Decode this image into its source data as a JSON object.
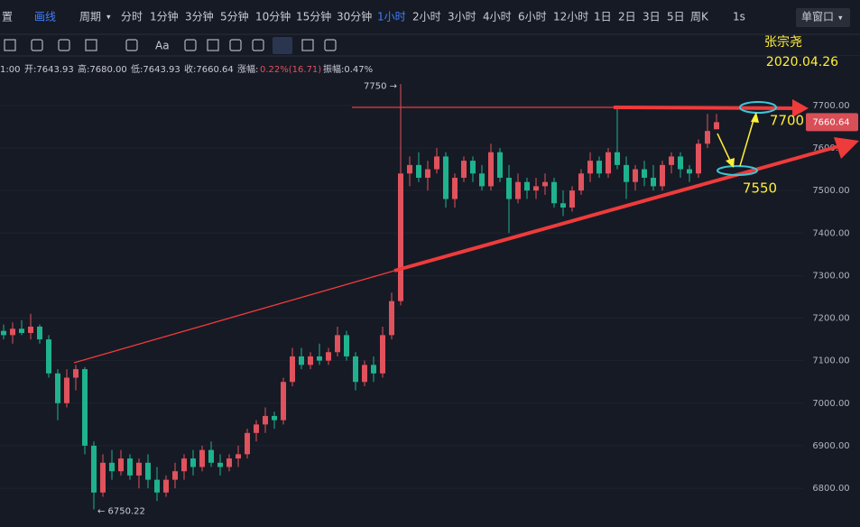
{
  "ui": {
    "toolbar": [
      "置",
      "画线",
      "周期",
      "分时",
      "1分钟",
      "3分钟",
      "5分钟",
      "10分钟",
      "15分钟",
      "30分钟",
      "1小时",
      "2小时",
      "3小时",
      "4小时",
      "6小时",
      "12小时",
      "1日",
      "2日",
      "3日",
      "5日",
      "周K",
      "1s",
      "单窗口"
    ],
    "active": "1小时",
    "toolbar2": [
      "Aa"
    ],
    "info": [
      "1:00",
      "开:7643.93",
      "高:7680.00",
      "低:7643.93",
      "收:7660.64",
      "涨幅:",
      "0.22%(16.71)",
      "振幅:0.47%"
    ]
  },
  "chart_data": {
    "type": "candlestick",
    "up_color": "#e0525c",
    "down_color": "#1fb28f",
    "grid": true,
    "ylim": [
      6728,
      7810
    ],
    "yticks": [
      {
        "value": 6800,
        "label": "6800.00"
      },
      {
        "value": 6900,
        "label": "6900.00"
      },
      {
        "value": 7000,
        "label": "7000.00"
      },
      {
        "value": 7100,
        "label": "7100.00"
      },
      {
        "value": 7200,
        "label": "7200.00"
      },
      {
        "value": 7300,
        "label": "7300.00"
      },
      {
        "value": 7400,
        "label": "7400.00"
      },
      {
        "value": 7500,
        "label": "7500.00"
      },
      {
        "value": 7600,
        "label": "7600.00"
      },
      {
        "value": 7700,
        "label": "7700.00"
      }
    ],
    "open": [
      7170,
      7160,
      7175,
      7165,
      7180,
      7150,
      7070,
      7000,
      7060,
      7080,
      6900,
      6790,
      6860,
      6840,
      6870,
      6830,
      6860,
      6820,
      6790,
      6820,
      6840,
      6870,
      6850,
      6890,
      6860,
      6850,
      6870,
      6880,
      6930,
      6950,
      6970,
      6960,
      7050,
      7110,
      7090,
      7110,
      7100,
      7120,
      7160,
      7110,
      7050,
      7090,
      7070,
      7160,
      7240,
      7540,
      7560,
      7530,
      7550,
      7580,
      7480,
      7530,
      7570,
      7540,
      7510,
      7590,
      7530,
      7480,
      7520,
      7500,
      7510,
      7520,
      7470,
      7460,
      7500,
      7540,
      7570,
      7540,
      7590,
      7560,
      7520,
      7550,
      7530,
      7510,
      7560,
      7580,
      7550,
      7540,
      7610,
      7643.93
    ],
    "high": [
      7185,
      7190,
      7195,
      7210,
      7185,
      7160,
      7080,
      7080,
      7090,
      7085,
      6910,
      6880,
      6890,
      6890,
      6880,
      6870,
      6880,
      6850,
      6830,
      6860,
      6880,
      6890,
      6900,
      6910,
      6880,
      6880,
      6900,
      6940,
      6960,
      6990,
      6980,
      7060,
      7130,
      7130,
      7120,
      7140,
      7130,
      7180,
      7170,
      7120,
      7100,
      7110,
      7180,
      7260,
      7750,
      7580,
      7590,
      7570,
      7600,
      7590,
      7540,
      7580,
      7580,
      7560,
      7610,
      7600,
      7560,
      7540,
      7530,
      7530,
      7540,
      7530,
      7500,
      7510,
      7550,
      7590,
      7580,
      7600,
      7700,
      7580,
      7560,
      7570,
      7560,
      7570,
      7590,
      7590,
      7560,
      7620,
      7680,
      7680
    ],
    "low": [
      7150,
      7140,
      7160,
      7150,
      7140,
      7060,
      6960,
      6990,
      7030,
      6880,
      6750.22,
      6780,
      6820,
      6830,
      6820,
      6800,
      6800,
      6770,
      6780,
      6800,
      6820,
      6830,
      6840,
      6850,
      6830,
      6840,
      6850,
      6870,
      6910,
      6930,
      6940,
      6950,
      7040,
      7080,
      7080,
      7090,
      7090,
      7110,
      7100,
      7030,
      7040,
      7050,
      7060,
      7150,
      7230,
      7510,
      7520,
      7500,
      7540,
      7460,
      7460,
      7520,
      7520,
      7500,
      7500,
      7520,
      7400,
      7470,
      7480,
      7480,
      7490,
      7460,
      7440,
      7450,
      7490,
      7520,
      7530,
      7530,
      7550,
      7480,
      7500,
      7510,
      7500,
      7500,
      7540,
      7530,
      7520,
      7530,
      7600,
      7643.93
    ],
    "close": [
      7160,
      7175,
      7165,
      7180,
      7150,
      7070,
      7000,
      7060,
      7080,
      6900,
      6790,
      6860,
      6840,
      6870,
      6830,
      6860,
      6820,
      6790,
      6820,
      6840,
      6870,
      6850,
      6890,
      6860,
      6850,
      6870,
      6880,
      6930,
      6950,
      6970,
      6960,
      7050,
      7110,
      7090,
      7110,
      7100,
      7120,
      7160,
      7110,
      7050,
      7090,
      7070,
      7160,
      7240,
      7540,
      7560,
      7530,
      7550,
      7580,
      7480,
      7530,
      7570,
      7540,
      7510,
      7590,
      7530,
      7480,
      7520,
      7500,
      7510,
      7520,
      7470,
      7460,
      7500,
      7540,
      7570,
      7540,
      7590,
      7560,
      7520,
      7550,
      7530,
      7510,
      7560,
      7580,
      7550,
      7540,
      7610,
      7640,
      7660.64
    ],
    "high_label": "7750 →",
    "low_label": "← 6750.22",
    "annotations": [
      "张宗尧",
      "2020.04.26",
      "7700",
      "7550"
    ]
  }
}
